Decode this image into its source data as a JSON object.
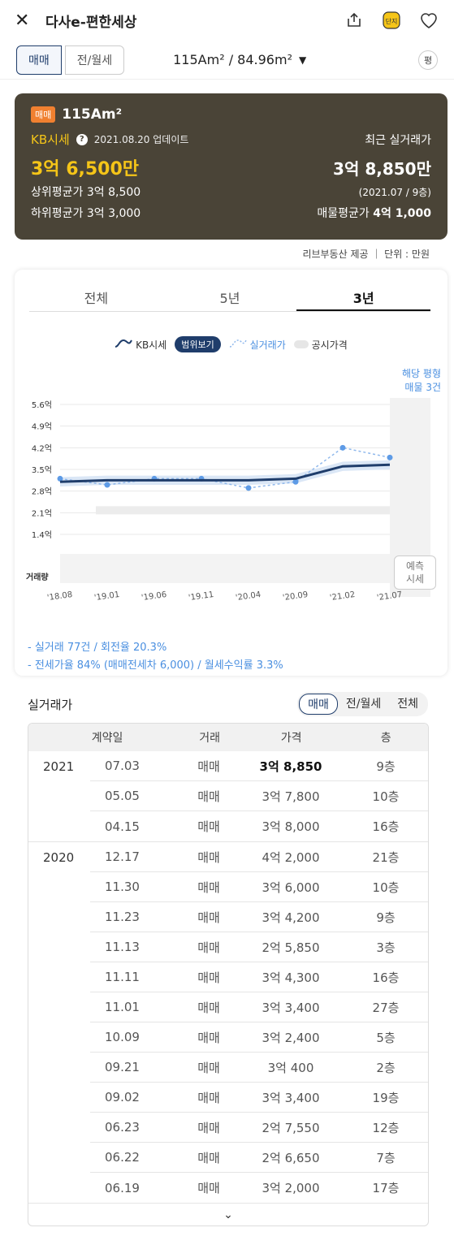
{
  "header": {
    "title": "다사e-편한세상",
    "badge_icon_text": "단지"
  },
  "toggle": {
    "sale_label": "매매",
    "rent_label": "전/월세",
    "area_value": "115Am² / 84.96m²",
    "swap_label": "평"
  },
  "kb": {
    "tag": "매매",
    "area": "115Am²",
    "label": "KB시세",
    "update_date": "2021.08.20 업데이트",
    "recent_label": "최근 실거래가",
    "kb_price": "3억 6,500만",
    "recent_price": "3억 8,850만",
    "upper_avg": "상위평균가 3억 8,500",
    "recent_sub": "(2021.07 / 9층)",
    "lower_avg": "하위평균가 3억 3,000",
    "listing_avg_label": "매물평균가",
    "listing_avg_value": "4억 1,000"
  },
  "source_note": "리브부동산 제공 ｜ 단위 : 만원",
  "chart": {
    "tabs": [
      "전체",
      "5년",
      "3년"
    ],
    "legend_kb": "KB시세",
    "legend_range": "범위보기",
    "legend_trade": "실거래가",
    "legend_public": "공시가격",
    "side_note_1": "해당 평형",
    "side_note_2": "매물 3건",
    "volume_label": "거래량",
    "forecast_1": "예측",
    "forecast_2": "시세",
    "summary_1": "- 실거래 77건 / 회전율 20.3%",
    "summary_2": "- 전세가율 84% (매매전세차 6,000) / 월세수익률 3.3%"
  },
  "chart_data": {
    "type": "line",
    "yticks": [
      "5.6억",
      "4.9억",
      "4.2억",
      "3.5억",
      "2.8억",
      "2.1억",
      "1.4억"
    ],
    "xticks": [
      "'18.08",
      "'19.01",
      "'19.06",
      "'19.11",
      "'20.04",
      "'20.09",
      "'21.02",
      "'21.07"
    ],
    "ylim": [
      1.4,
      5.6
    ],
    "series": [
      {
        "name": "KB시세",
        "x": [
          "'18.08",
          "'19.01",
          "'19.06",
          "'19.11",
          "'20.04",
          "'20.09",
          "'21.02",
          "'21.07"
        ],
        "values": [
          3.1,
          3.15,
          3.15,
          3.15,
          3.15,
          3.2,
          3.6,
          3.65
        ]
      },
      {
        "name": "실거래가",
        "x": [
          "'18.08",
          "'19.01",
          "'19.06",
          "'19.11",
          "'20.04",
          "'20.09",
          "'21.02",
          "'21.07"
        ],
        "values": [
          3.2,
          3.0,
          3.2,
          3.2,
          2.9,
          3.1,
          4.2,
          3.885
        ]
      }
    ]
  },
  "trade": {
    "title": "실거래가",
    "seg_sale": "매매",
    "seg_rent": "전/월세",
    "seg_all": "전체",
    "headers": [
      "계약일",
      "거래",
      "가격",
      "층"
    ],
    "years": [
      {
        "year": "2021",
        "rows": [
          {
            "date": "07.03",
            "type": "매매",
            "price": "3억 8,850",
            "floor": "9층"
          },
          {
            "date": "05.05",
            "type": "매매",
            "price": "3억 7,800",
            "floor": "10층"
          },
          {
            "date": "04.15",
            "type": "매매",
            "price": "3억 8,000",
            "floor": "16층"
          }
        ]
      },
      {
        "year": "2020",
        "rows": [
          {
            "date": "12.17",
            "type": "매매",
            "price": "4억 2,000",
            "floor": "21층"
          },
          {
            "date": "11.30",
            "type": "매매",
            "price": "3억 6,000",
            "floor": "10층"
          },
          {
            "date": "11.23",
            "type": "매매",
            "price": "3억 4,200",
            "floor": "9층"
          },
          {
            "date": "11.13",
            "type": "매매",
            "price": "2억 5,850",
            "floor": "3층"
          },
          {
            "date": "11.11",
            "type": "매매",
            "price": "3억 4,300",
            "floor": "16층"
          },
          {
            "date": "11.01",
            "type": "매매",
            "price": "3억 3,400",
            "floor": "27층"
          },
          {
            "date": "10.09",
            "type": "매매",
            "price": "3억 2,400",
            "floor": "5층"
          },
          {
            "date": "09.21",
            "type": "매매",
            "price": "3억 400",
            "floor": "2층"
          },
          {
            "date": "09.02",
            "type": "매매",
            "price": "3억 3,400",
            "floor": "19층"
          },
          {
            "date": "06.23",
            "type": "매매",
            "price": "2억 7,550",
            "floor": "12층"
          },
          {
            "date": "06.22",
            "type": "매매",
            "price": "2억 6,650",
            "floor": "7층"
          },
          {
            "date": "06.19",
            "type": "매매",
            "price": "3억 2,000",
            "floor": "17층"
          }
        ]
      }
    ]
  }
}
